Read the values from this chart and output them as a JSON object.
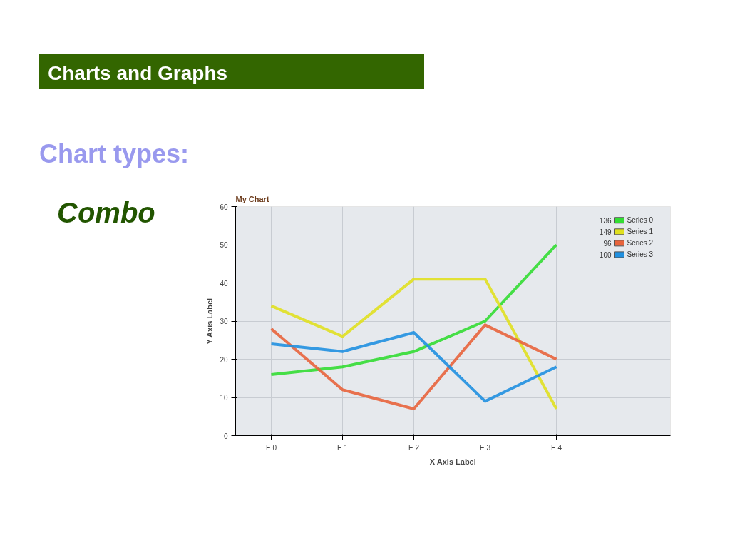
{
  "chart_data": {
    "type": "line",
    "title": "My Chart",
    "xlabel": "X Axis Label",
    "ylabel": "Y Axis Label",
    "categories": [
      "E 0",
      "E 1",
      "E 2",
      "E 3",
      "E 4"
    ],
    "series": [
      {
        "name": "Series 0",
        "color": "#33dd33",
        "values": [
          16,
          18,
          22,
          30,
          50
        ]
      },
      {
        "name": "Series 1",
        "color": "#e0e020",
        "values": [
          34,
          26,
          41,
          41,
          7
        ]
      },
      {
        "name": "Series 2",
        "color": "#e8643c",
        "values": [
          28,
          12,
          7,
          29,
          20
        ]
      },
      {
        "name": "Series 3",
        "color": "#2090e0",
        "values": [
          24,
          22,
          27,
          9,
          18
        ]
      }
    ],
    "annotations": [
      "Charts and Graphs",
      "Chart types:",
      "Combo",
      "136",
      "149",
      "96",
      "100"
    ],
    "ylim": [
      0,
      60
    ],
    "yticks": [
      0,
      10,
      20,
      30,
      40,
      50,
      60
    ],
    "grid": true,
    "legend": "top right",
    "marker": "none",
    "line_style": "solid"
  }
}
